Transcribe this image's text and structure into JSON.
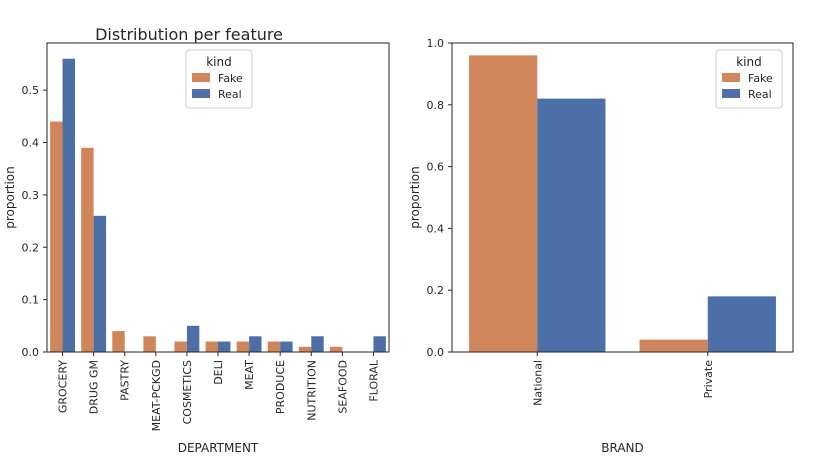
{
  "figure_title": "Distribution per feature",
  "colors": {
    "fake": "#d1855a",
    "real": "#4c6fa8",
    "axes": "#262626"
  },
  "chart_data": [
    {
      "type": "bar",
      "title": "",
      "xlabel": "DEPARTMENT",
      "ylabel": "proportion",
      "ylim": [
        0,
        0.59
      ],
      "yticks": [
        0.0,
        0.1,
        0.2,
        0.3,
        0.4,
        0.5
      ],
      "ytick_labels": [
        "0.0",
        "0.1",
        "0.2",
        "0.3",
        "0.4",
        "0.5"
      ],
      "categories": [
        "GROCERY",
        "DRUG GM",
        "PASTRY",
        "MEAT-PCKGD",
        "COSMETICS",
        "DELI",
        "MEAT",
        "PRODUCE",
        "NUTRITION",
        "SEAFOOD",
        "FLORAL"
      ],
      "series": [
        {
          "name": "Fake",
          "values": [
            0.44,
            0.39,
            0.04,
            0.03,
            0.02,
            0.02,
            0.02,
            0.02,
            0.01,
            0.01,
            0.0
          ]
        },
        {
          "name": "Real",
          "values": [
            0.56,
            0.26,
            0.0,
            0.0,
            0.05,
            0.02,
            0.03,
            0.02,
            0.03,
            0.0,
            0.03
          ]
        }
      ],
      "legend": {
        "title": "kind",
        "placement": "upper-center"
      },
      "grid": false
    },
    {
      "type": "bar",
      "title": "",
      "xlabel": "BRAND",
      "ylabel": "proportion",
      "ylim": [
        0,
        1.0
      ],
      "yticks": [
        0.0,
        0.2,
        0.4,
        0.6,
        0.8,
        1.0
      ],
      "ytick_labels": [
        "0.0",
        "0.2",
        "0.4",
        "0.6",
        "0.8",
        "1.0"
      ],
      "categories": [
        "National",
        "Private"
      ],
      "series": [
        {
          "name": "Fake",
          "values": [
            0.96,
            0.04
          ]
        },
        {
          "name": "Real",
          "values": [
            0.82,
            0.18
          ]
        }
      ],
      "legend": {
        "title": "kind",
        "placement": "upper-right"
      },
      "grid": false
    }
  ]
}
